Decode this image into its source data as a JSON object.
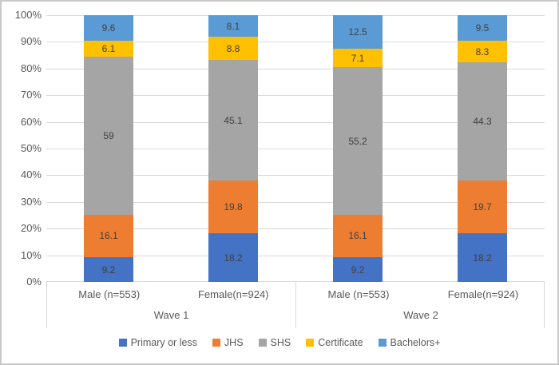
{
  "chart_data": {
    "type": "bar",
    "subtype": "100-percent-stacked-column",
    "title": "",
    "y_axis": {
      "min": 0,
      "max": 100,
      "ticks": [
        "0%",
        "10%",
        "20%",
        "30%",
        "40%",
        "50%",
        "60%",
        "70%",
        "80%",
        "90%",
        "100%"
      ],
      "grid": true
    },
    "groups": [
      {
        "label": "Wave 1",
        "categories": [
          "Male (n=553)",
          "Female(n=924)"
        ]
      },
      {
        "label": "Wave 2",
        "categories": [
          "Male (n=553)",
          "Female(n=924)"
        ]
      }
    ],
    "series": [
      {
        "name": "Primary or less",
        "color": "#4472C4",
        "values": [
          9.2,
          18.2,
          9.2,
          18.2
        ],
        "labels": [
          "9.2",
          "18.2",
          "9.2",
          "18.2"
        ]
      },
      {
        "name": "JHS",
        "color": "#ED7D31",
        "values": [
          16.1,
          19.8,
          16.1,
          19.7
        ],
        "labels": [
          "16.1",
          "19.8",
          "16.1",
          "19.7"
        ]
      },
      {
        "name": "SHS",
        "color": "#A5A5A5",
        "values": [
          59,
          45.1,
          55.2,
          44.3
        ],
        "labels": [
          "59",
          "45.1",
          "55.2",
          "44.3"
        ]
      },
      {
        "name": "Certificate",
        "color": "#FFC000",
        "values": [
          6.1,
          8.8,
          7.1,
          8.3
        ],
        "labels": [
          "6.1",
          "8.8",
          "7.1",
          "8.3"
        ]
      },
      {
        "name": "Bachelors+",
        "color": "#5B9BD5",
        "values": [
          9.6,
          8.1,
          12.5,
          9.5
        ],
        "labels": [
          "9.6",
          "8.1",
          "12.5",
          "9.5"
        ]
      }
    ],
    "legend": {
      "position": "bottom",
      "entries": [
        "Primary or less",
        "JHS",
        "SHS",
        "Certificate",
        "Bachelors+"
      ]
    },
    "grid_color": "#D9D9D9",
    "label_color": "#595959",
    "data_label_color": "#404040"
  }
}
